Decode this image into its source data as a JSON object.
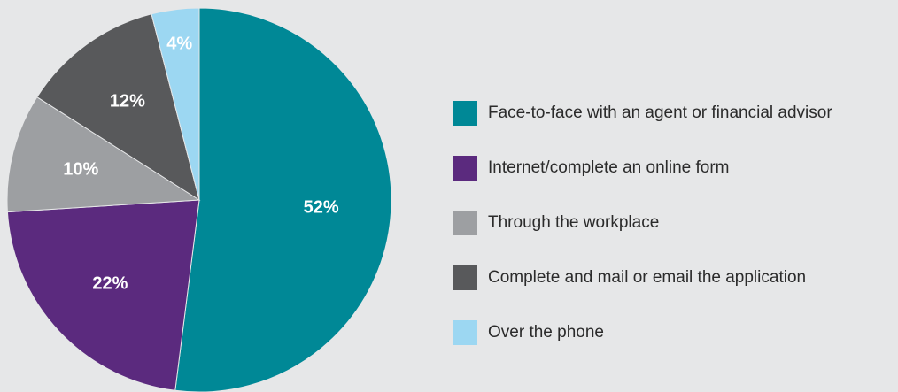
{
  "chart_data": {
    "type": "pie",
    "title": "",
    "legend_position": "right",
    "slices": [
      {
        "label": "Face-to-face with an agent or financial advisor",
        "value": 52,
        "display": "52%",
        "color": "#008896"
      },
      {
        "label": "Internet/complete an online form",
        "value": 22,
        "display": "22%",
        "color": "#5b2a7e"
      },
      {
        "label": "Through the workplace",
        "value": 10,
        "display": "10%",
        "color": "#9d9fa2"
      },
      {
        "label": "Complete and mail or email the application",
        "value": 12,
        "display": "12%",
        "color": "#58595b"
      },
      {
        "label": "Over the phone",
        "value": 4,
        "display": "4%",
        "color": "#9cd7f2"
      }
    ]
  }
}
